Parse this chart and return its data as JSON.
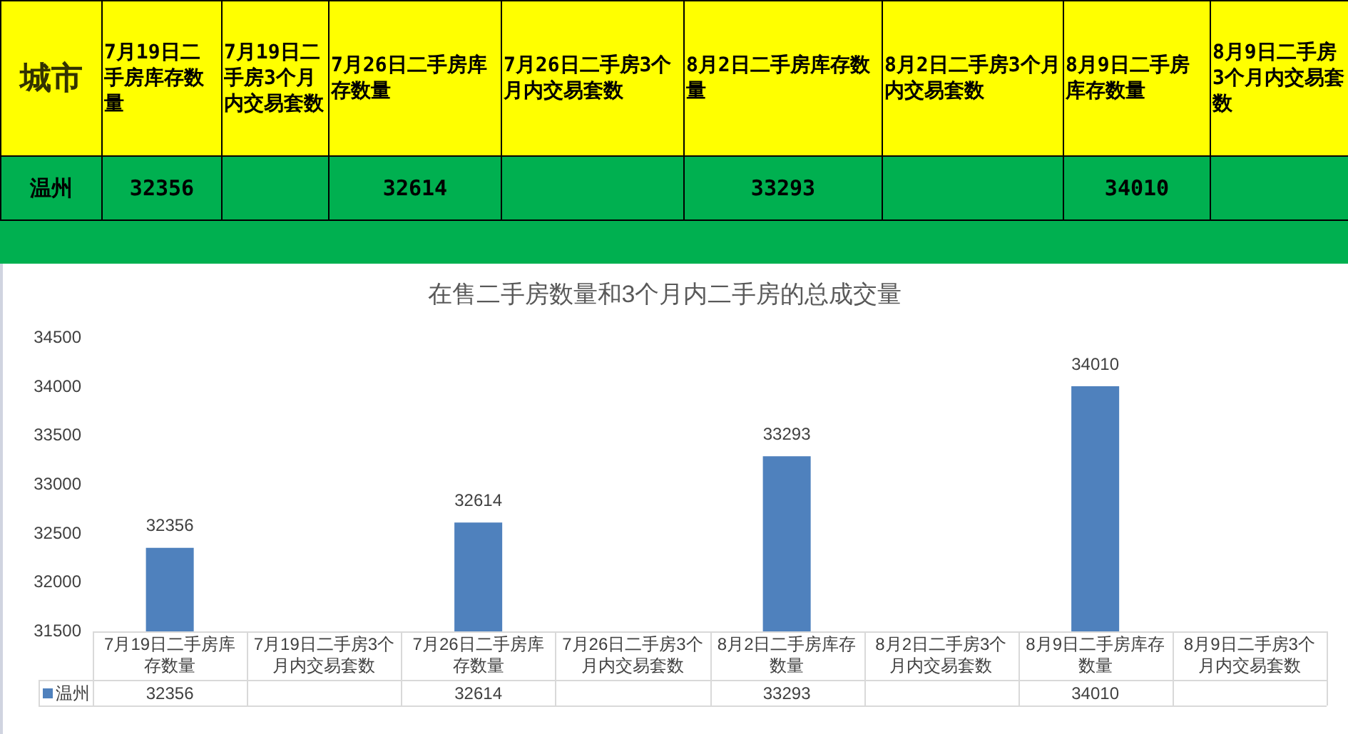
{
  "chart_data": [
    {
      "type": "other",
      "legend_title": "城市",
      "categories": [
        "7月19日二手房库存数量",
        "7月19日二手房3个月内交易套数",
        "7月26日二手房库存数量",
        "7月26日二手房3个月内交易套数",
        "8月2日二手房库存数量",
        "8月2日二手房3个月内交易套数",
        "8月9日二手房库存数量",
        "8月9日二手房3个月内交易套数"
      ],
      "series": [
        {
          "name": "温州",
          "values": [
            32356,
            null,
            32614,
            null,
            33293,
            null,
            34010,
            null
          ]
        }
      ],
      "data_labels": true
    },
    {
      "type": "bar",
      "title": "在售二手房数量和3个月内二手房的总成交量",
      "categories": [
        "7月19日二手房库存数量",
        "7月19日二手房3个月内交易套数",
        "7月26日二手房库存数量",
        "7月26日二手房3个月内交易套数",
        "8月2日二手房库存数量",
        "8月2日二手房3个月内交易套数",
        "8月9日二手房库存数量",
        "8月9日二手房3个月内交易套数"
      ],
      "series": [
        {
          "name": "温州",
          "color": "#4f81bd",
          "values": [
            32356,
            null,
            32614,
            null,
            33293,
            null,
            34010,
            null
          ],
          "value_labels": [
            "32356",
            null,
            "32614",
            null,
            "33293",
            null,
            "34010",
            null
          ]
        }
      ],
      "annotations": [
        {
          "text": "32356",
          "x": "7月19日二手房库存数量",
          "y": 32356
        },
        {
          "text": "32614",
          "x": "7月26日二手房库存数量",
          "y": 32614
        },
        {
          "text": "33293",
          "x": "8月2日二手房库存数量",
          "y": 33293
        },
        {
          "text": "34010",
          "x": "8月9日二手房库存数量",
          "y": 34010
        }
      ],
      "ylim": [
        31500,
        34500
      ],
      "yticks": [
        31500,
        32000,
        32500,
        33000,
        33500,
        34000,
        34500
      ],
      "grid": false,
      "legend": "bottom"
    }
  ]
}
